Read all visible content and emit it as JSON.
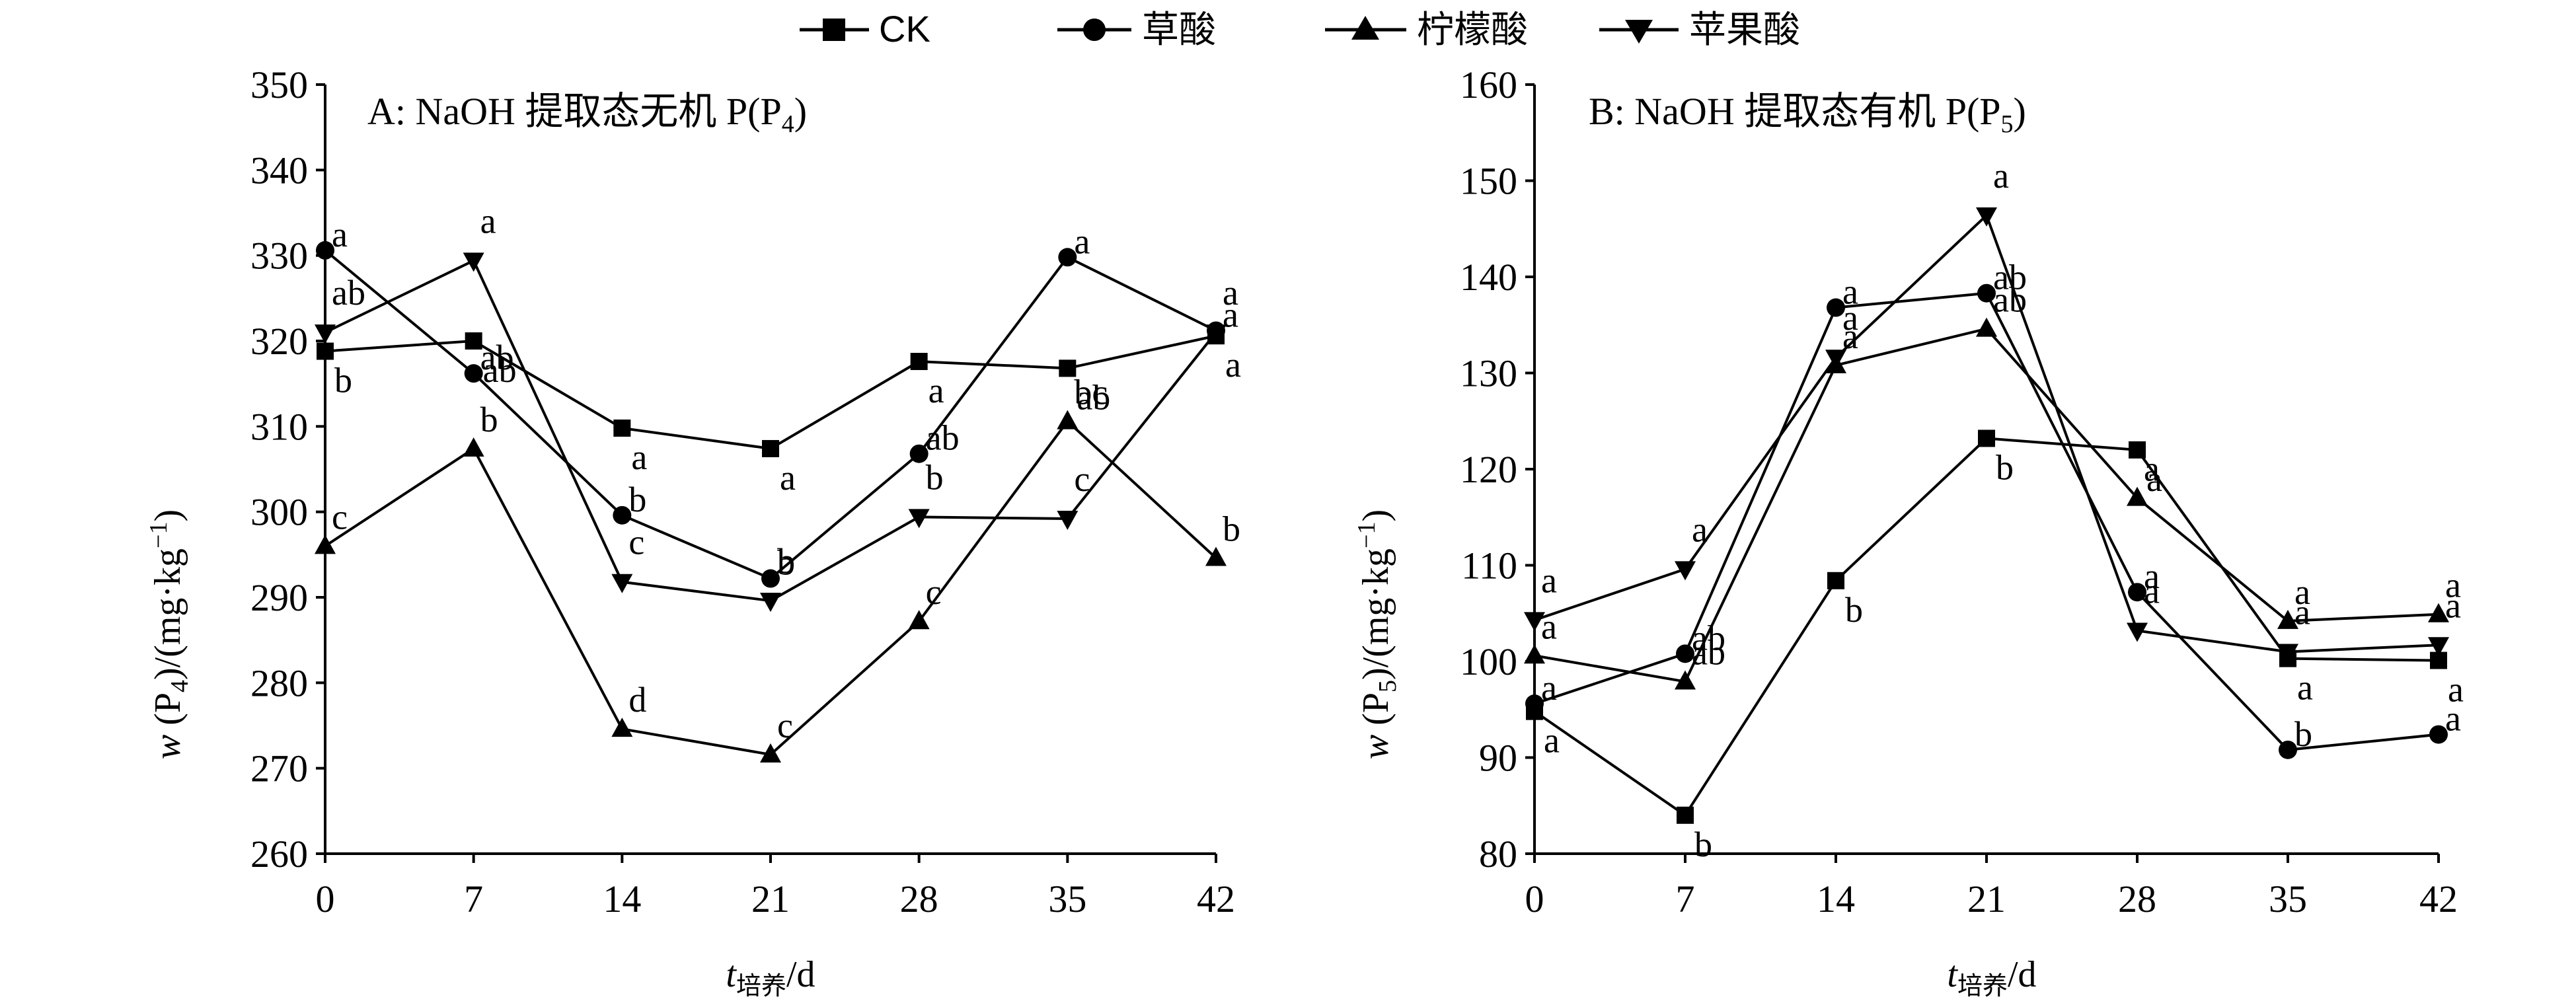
{
  "legend": [
    "CK",
    "草酸",
    "柠檬酸",
    "苹果酸"
  ],
  "chart_data": [
    {
      "type": "line",
      "title_prefix": "A: NaOH 提取态无机 P(P",
      "title_sub": "4",
      "title_suffix": ")",
      "ylabel_var": "w",
      "ylabel_open": " (P",
      "ylabel_sub": "4",
      "ylabel_mid": ")/(mg·kg",
      "ylabel_sup": "−1",
      "ylabel_close": ")",
      "xlabel_var": "t",
      "xlabel_sub": "培养",
      "xlabel_unit": "/d",
      "x": [
        0,
        7,
        14,
        21,
        28,
        35,
        42
      ],
      "xlim": [
        0,
        42
      ],
      "ylim": [
        260,
        350
      ],
      "yticks": [
        260,
        270,
        280,
        290,
        300,
        310,
        320,
        330,
        340,
        350
      ],
      "series": [
        {
          "name": "CK",
          "marker": "square",
          "values": [
            318.8,
            320.0,
            309.8,
            307.4,
            317.6,
            316.8,
            320.6
          ],
          "labels": [
            "b",
            "ab",
            "a",
            "a",
            "a",
            "ab",
            "a"
          ]
        },
        {
          "name": "草酸",
          "marker": "circle",
          "values": [
            330.6,
            316.2,
            299.6,
            292.2,
            306.8,
            329.8,
            321.2
          ],
          "labels": [
            "a",
            "ab",
            "b",
            "b",
            "ab",
            "a",
            "a"
          ]
        },
        {
          "name": "柠檬酸",
          "marker": "triangle-up",
          "values": [
            296.0,
            307.4,
            274.6,
            271.6,
            287.2,
            310.6,
            294.6
          ],
          "labels": [
            "c",
            "b",
            "d",
            "c",
            "c",
            "bc",
            "b"
          ]
        },
        {
          "name": "苹果酸",
          "marker": "triangle-down",
          "values": [
            321.0,
            329.4,
            291.8,
            289.6,
            299.4,
            299.2,
            321.0
          ],
          "labels": [
            "ab",
            "a",
            "c",
            "b",
            "b",
            "c",
            "a"
          ]
        }
      ]
    },
    {
      "type": "line",
      "title_prefix": "B: NaOH 提取态有机 P(P",
      "title_sub": "5",
      "title_suffix": ")",
      "ylabel_var": "w",
      "ylabel_open": " (P",
      "ylabel_sub": "5",
      "ylabel_mid": ")/(mg·kg",
      "ylabel_sup": "−1",
      "ylabel_close": ")",
      "xlabel_var": "t",
      "xlabel_sub": "培养",
      "xlabel_unit": "/d",
      "x": [
        0,
        7,
        14,
        21,
        28,
        35,
        42
      ],
      "xlim": [
        0,
        42
      ],
      "ylim": [
        80,
        160
      ],
      "yticks": [
        80,
        90,
        100,
        110,
        120,
        130,
        140,
        150,
        160
      ],
      "series": [
        {
          "name": "CK",
          "marker": "square",
          "values": [
            94.8,
            84.0,
            108.4,
            123.2,
            122.0,
            100.3,
            100.1
          ],
          "labels": [
            "a",
            "b",
            "b",
            "b",
            "a",
            "a",
            "a"
          ]
        },
        {
          "name": "草酸",
          "marker": "circle",
          "values": [
            95.6,
            100.8,
            136.8,
            138.3,
            107.2,
            90.8,
            92.4
          ],
          "labels": [
            "a",
            "ab",
            "a",
            "ab",
            "a",
            "b",
            "a"
          ]
        },
        {
          "name": "柠檬酸",
          "marker": "triangle-up",
          "values": [
            100.6,
            97.9,
            130.8,
            134.6,
            117.0,
            104.2,
            104.9
          ],
          "labels": [
            "a",
            "ab",
            "a",
            "ab",
            "a",
            "a",
            "a"
          ]
        },
        {
          "name": "苹果酸",
          "marker": "triangle-down",
          "values": [
            104.3,
            109.6,
            131.6,
            146.4,
            103.2,
            101.0,
            101.7
          ],
          "labels": [
            "a",
            "a",
            "a",
            "a",
            "a",
            "a",
            "a"
          ]
        }
      ]
    }
  ]
}
